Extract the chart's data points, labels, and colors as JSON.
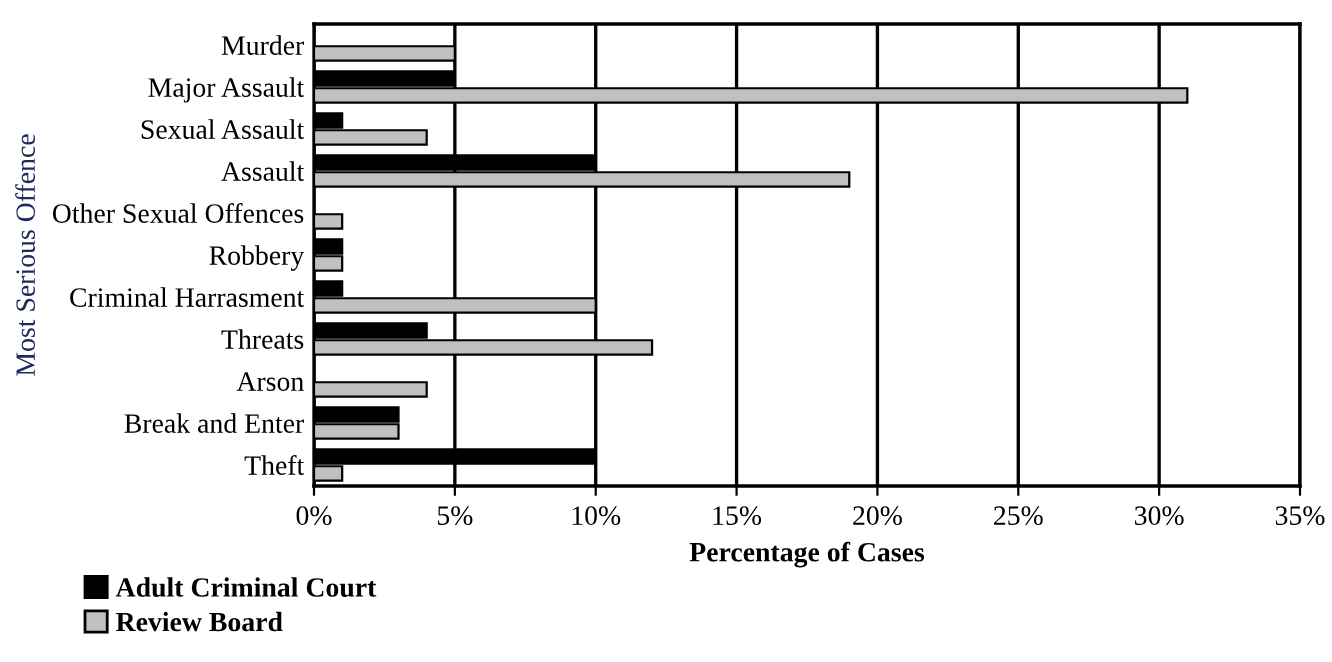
{
  "chart_data": {
    "type": "bar",
    "orientation": "horizontal",
    "xlabel": "Percentage of Cases",
    "ylabel": "Most Serious Offence",
    "categories": [
      "Murder",
      "Major Assault",
      "Sexual Assault",
      "Assault",
      "Other Sexual Offences",
      "Robbery",
      "Criminal Harrasment",
      "Threats",
      "Arson",
      "Break and Enter",
      "Theft"
    ],
    "series": [
      {
        "name": "Adult Criminal Court",
        "color": "#000000",
        "values": [
          null,
          5,
          1,
          10,
          null,
          1,
          1,
          4,
          null,
          3,
          10
        ]
      },
      {
        "name": "Review Board",
        "color": "#c0c0c0",
        "values": [
          5,
          31,
          4,
          19,
          1,
          1,
          10,
          12,
          4,
          3,
          1
        ]
      }
    ],
    "xlim": [
      0,
      35
    ],
    "xticks": [
      {
        "value": 0,
        "label": "0%"
      },
      {
        "value": 5,
        "label": "5%"
      },
      {
        "value": 10,
        "label": "10%"
      },
      {
        "value": 15,
        "label": "15%"
      },
      {
        "value": 20,
        "label": "20%"
      },
      {
        "value": 25,
        "label": "25%"
      },
      {
        "value": 30,
        "label": "30%"
      },
      {
        "value": 35,
        "label": "35%"
      }
    ],
    "grid": "x",
    "legend": "bottom left"
  }
}
